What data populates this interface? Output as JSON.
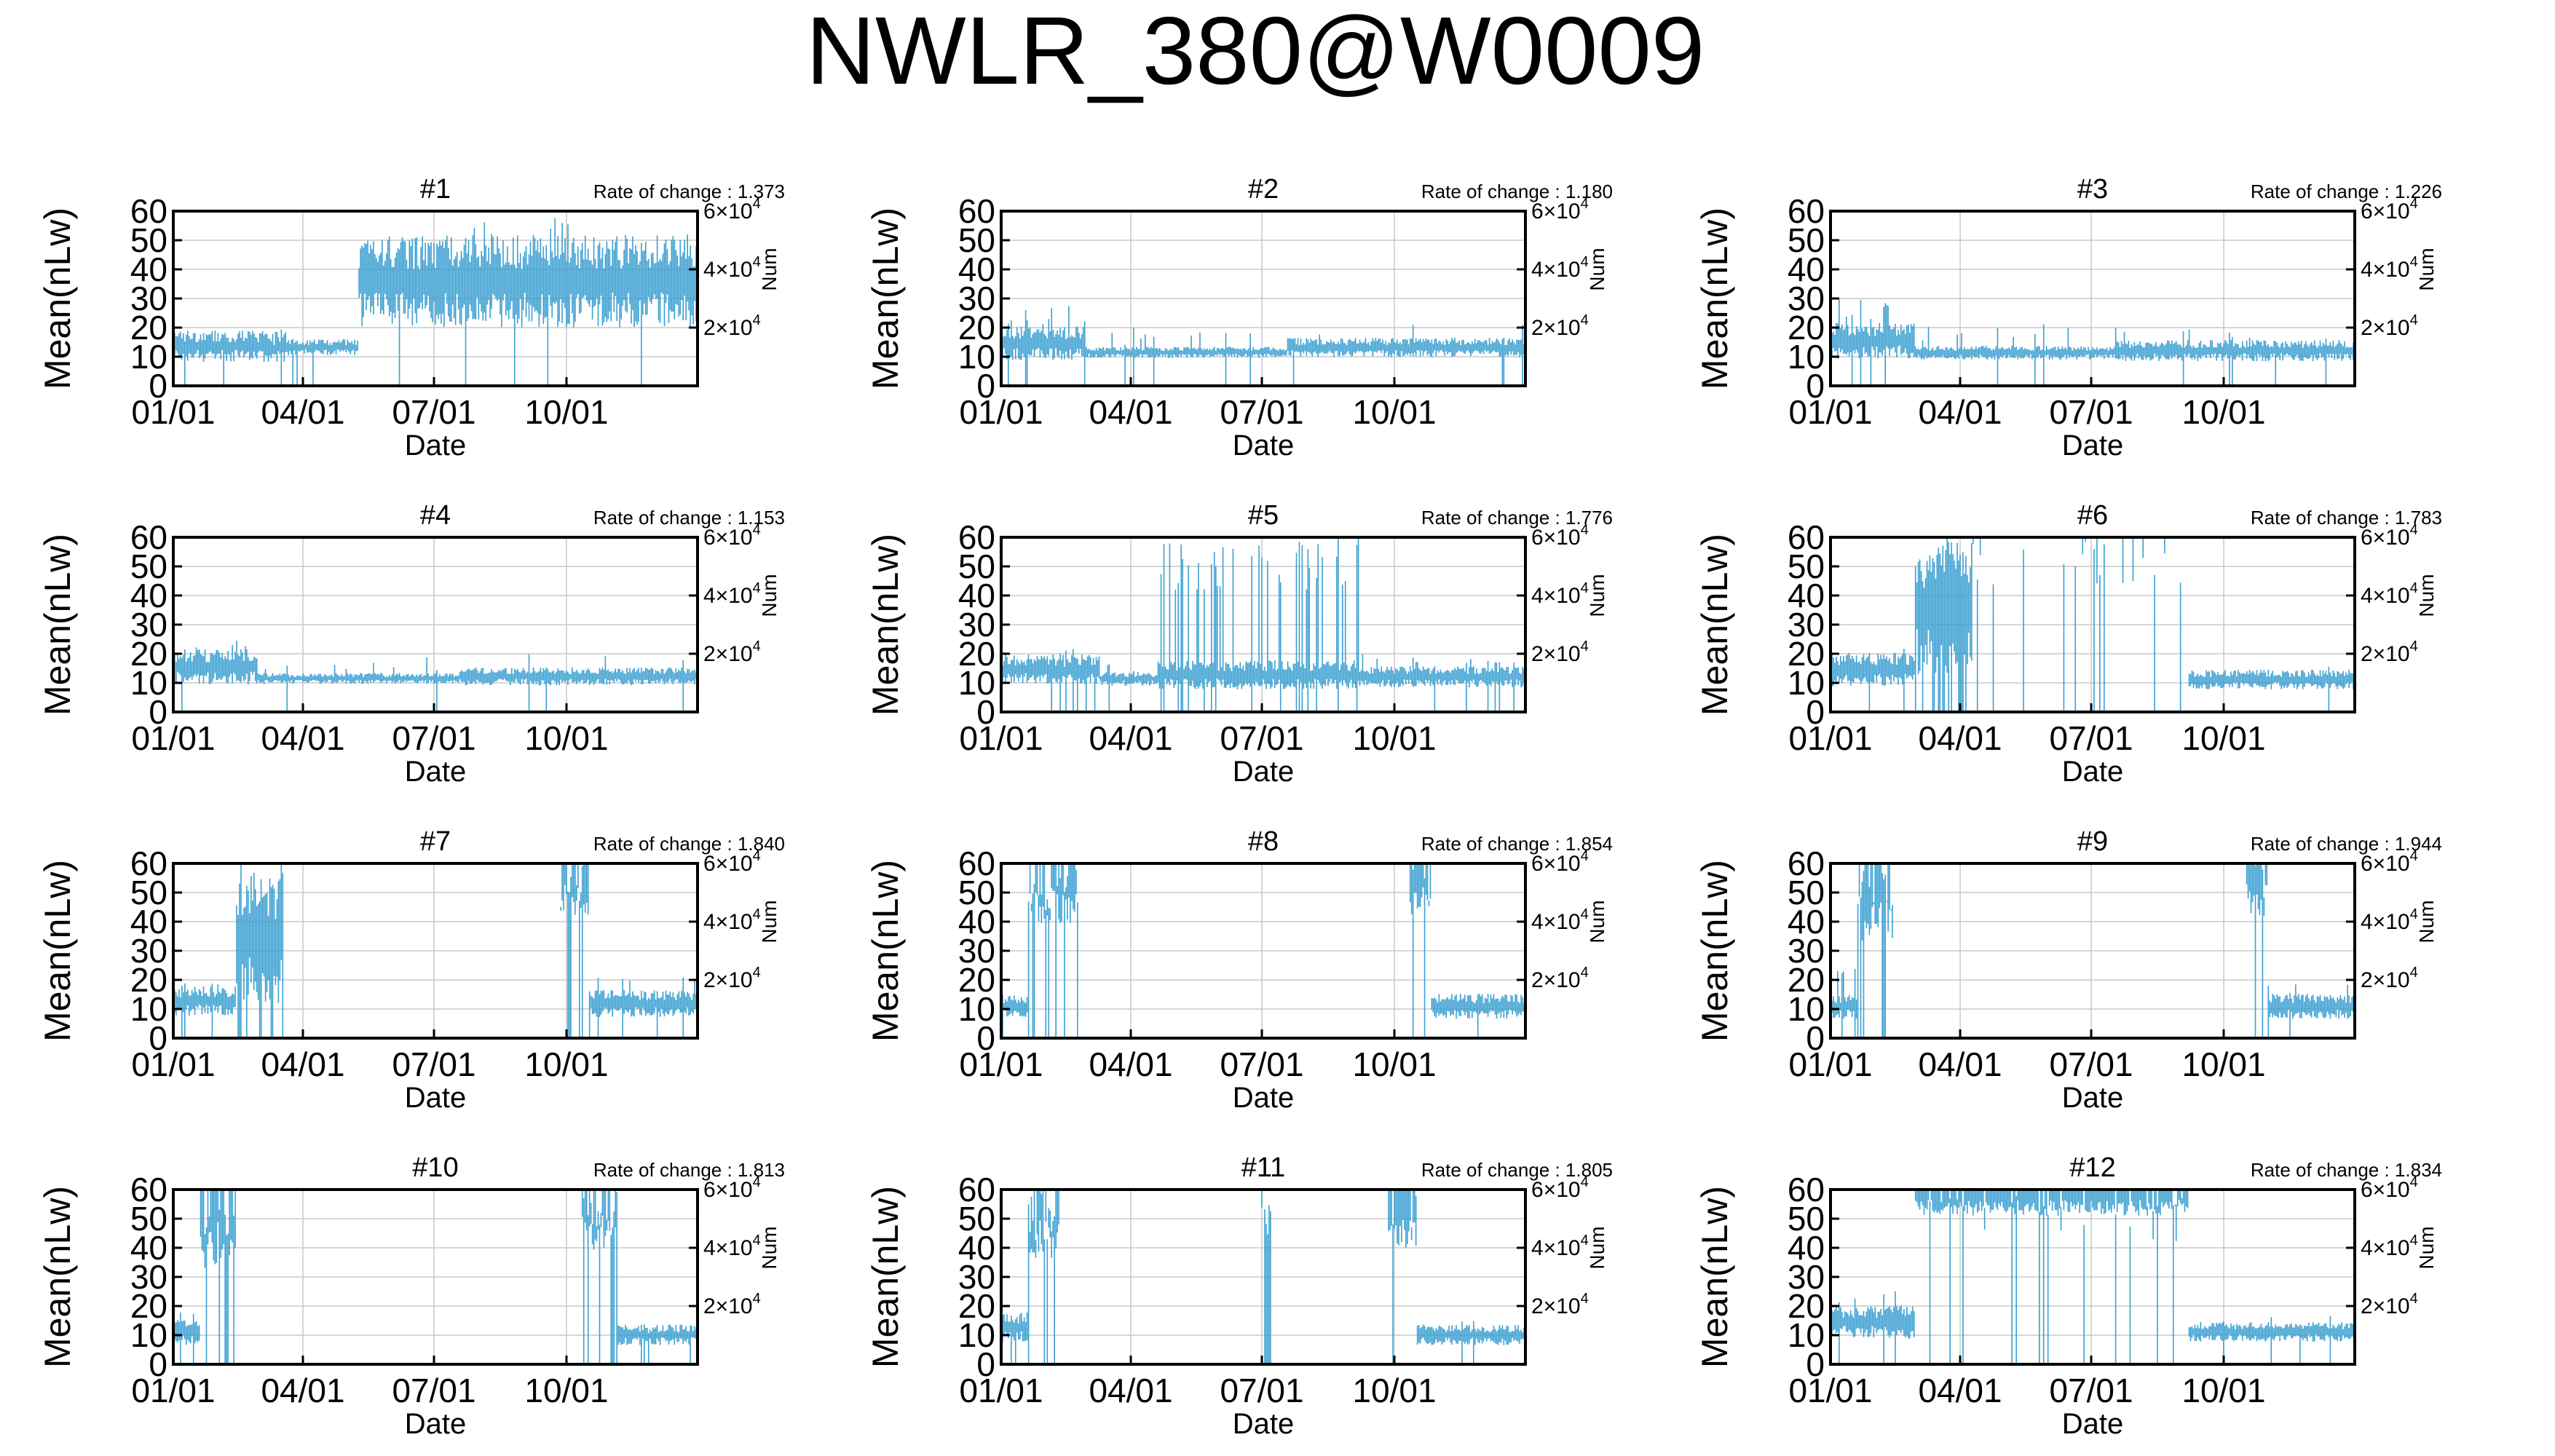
{
  "title": "NWLR_380@W0009",
  "chart_data": {
    "type": "line",
    "title": "NWLR_380@W0009",
    "xlabel": "Date",
    "ylabel": "Mean(nLw)",
    "y2label": "Num",
    "xticks": [
      "01/01",
      "04/01",
      "07/01",
      "10/01"
    ],
    "yticks": [
      "0",
      "10",
      "20",
      "30",
      "40",
      "50",
      "60"
    ],
    "y2ticks": [
      {
        "mantissa": "2×10",
        "exp": "4"
      },
      {
        "mantissa": "4×10",
        "exp": "4"
      },
      {
        "mantissa": "6×10",
        "exp": "4"
      }
    ],
    "ylim": [
      0,
      60
    ],
    "xlim_day_of_year": [
      1,
      365
    ],
    "grid": true,
    "series_color": "#3a9fd1",
    "panels": [
      {
        "label": "#1",
        "rate": "Rate of change : 1.373",
        "segments": [
          [
            1,
            80,
            15,
            0.45,
            20,
            0.08
          ],
          [
            80,
            130,
            14,
            0.25,
            18,
            0.15
          ],
          [
            130,
            365,
            40,
            0.5,
            58,
            0.05
          ]
        ]
      },
      {
        "label": "#2",
        "rate": "Rate of change : 1.180",
        "segments": [
          [
            1,
            60,
            16,
            0.45,
            28,
            0.12
          ],
          [
            60,
            200,
            12,
            0.2,
            20,
            0.05
          ],
          [
            200,
            365,
            14,
            0.3,
            22,
            0.05
          ]
        ]
      },
      {
        "label": "#3",
        "rate": "Rate of change : 1.226",
        "segments": [
          [
            1,
            60,
            17,
            0.45,
            30,
            0.12
          ],
          [
            60,
            200,
            12,
            0.25,
            22,
            0.05
          ],
          [
            200,
            365,
            13,
            0.35,
            20,
            0.06
          ]
        ]
      },
      {
        "label": "#4",
        "rate": "Rate of change : 1.153",
        "segments": [
          [
            1,
            60,
            17,
            0.45,
            26,
            0.12
          ],
          [
            60,
            200,
            12,
            0.2,
            20,
            0.05
          ],
          [
            200,
            365,
            13,
            0.3,
            20,
            0.05
          ]
        ]
      },
      {
        "label": "#5",
        "rate": "Rate of change : 1.776",
        "segments": [
          [
            1,
            70,
            16,
            0.4,
            22,
            0.1
          ],
          [
            70,
            110,
            12,
            0.25,
            18,
            0.05
          ],
          [
            110,
            250,
            14,
            0.45,
            60,
            0.3
          ],
          [
            250,
            365,
            13,
            0.35,
            20,
            0.06
          ]
        ]
      },
      {
        "label": "#6",
        "rate": "Rate of change : 1.783",
        "segments": [
          [
            1,
            60,
            16,
            0.45,
            25,
            0.1
          ],
          [
            60,
            100,
            40,
            0.7,
            60,
            0.45
          ],
          [
            100,
            250,
            60,
            0.0,
            60,
            0.12
          ],
          [
            250,
            365,
            12,
            0.35,
            18,
            0.06
          ]
        ]
      },
      {
        "label": "#7",
        "rate": "Rate of change : 1.840",
        "segments": [
          [
            1,
            45,
            14,
            0.45,
            20,
            0.1
          ],
          [
            45,
            78,
            40,
            0.7,
            60,
            0.45
          ],
          [
            78,
            90,
            60,
            0.0,
            60,
            0.1
          ],
          [
            270,
            290,
            60,
            0.3,
            60,
            0.4
          ],
          [
            290,
            365,
            13,
            0.45,
            22,
            0.06
          ]
        ]
      },
      {
        "label": "#8",
        "rate": "Rate of change : 1.854",
        "segments": [
          [
            1,
            20,
            12,
            0.4,
            20,
            0.15
          ],
          [
            20,
            55,
            60,
            0.35,
            60,
            0.35
          ],
          [
            285,
            300,
            60,
            0.3,
            60,
            0.4
          ],
          [
            300,
            365,
            12,
            0.45,
            20,
            0.06
          ]
        ]
      },
      {
        "label": "#9",
        "rate": "Rate of change : 1.944",
        "segments": [
          [
            1,
            20,
            12,
            0.45,
            25,
            0.15
          ],
          [
            20,
            45,
            60,
            0.45,
            60,
            0.4
          ],
          [
            290,
            305,
            60,
            0.3,
            60,
            0.4
          ],
          [
            305,
            365,
            12,
            0.45,
            20,
            0.06
          ]
        ]
      },
      {
        "label": "#10",
        "rate": "Rate of change : 1.813",
        "segments": [
          [
            1,
            20,
            12,
            0.45,
            20,
            0.15
          ],
          [
            20,
            45,
            60,
            0.45,
            60,
            0.4
          ],
          [
            285,
            310,
            60,
            0.35,
            60,
            0.4
          ],
          [
            310,
            365,
            11,
            0.4,
            15,
            0.06
          ]
        ]
      },
      {
        "label": "#11",
        "rate": "Rate of change : 1.805",
        "segments": [
          [
            1,
            20,
            14,
            0.45,
            22,
            0.15
          ],
          [
            20,
            42,
            60,
            0.4,
            60,
            0.4
          ],
          [
            180,
            190,
            60,
            0.0,
            60,
            0.5
          ],
          [
            270,
            290,
            60,
            0.35,
            60,
            0.4
          ],
          [
            290,
            365,
            11,
            0.4,
            15,
            0.06
          ]
        ]
      },
      {
        "label": "#12",
        "rate": "Rate of change : 1.834",
        "segments": [
          [
            1,
            60,
            16,
            0.45,
            26,
            0.12
          ],
          [
            60,
            250,
            60,
            0.15,
            60,
            0.12
          ],
          [
            250,
            365,
            12,
            0.35,
            18,
            0.06
          ]
        ]
      }
    ]
  }
}
